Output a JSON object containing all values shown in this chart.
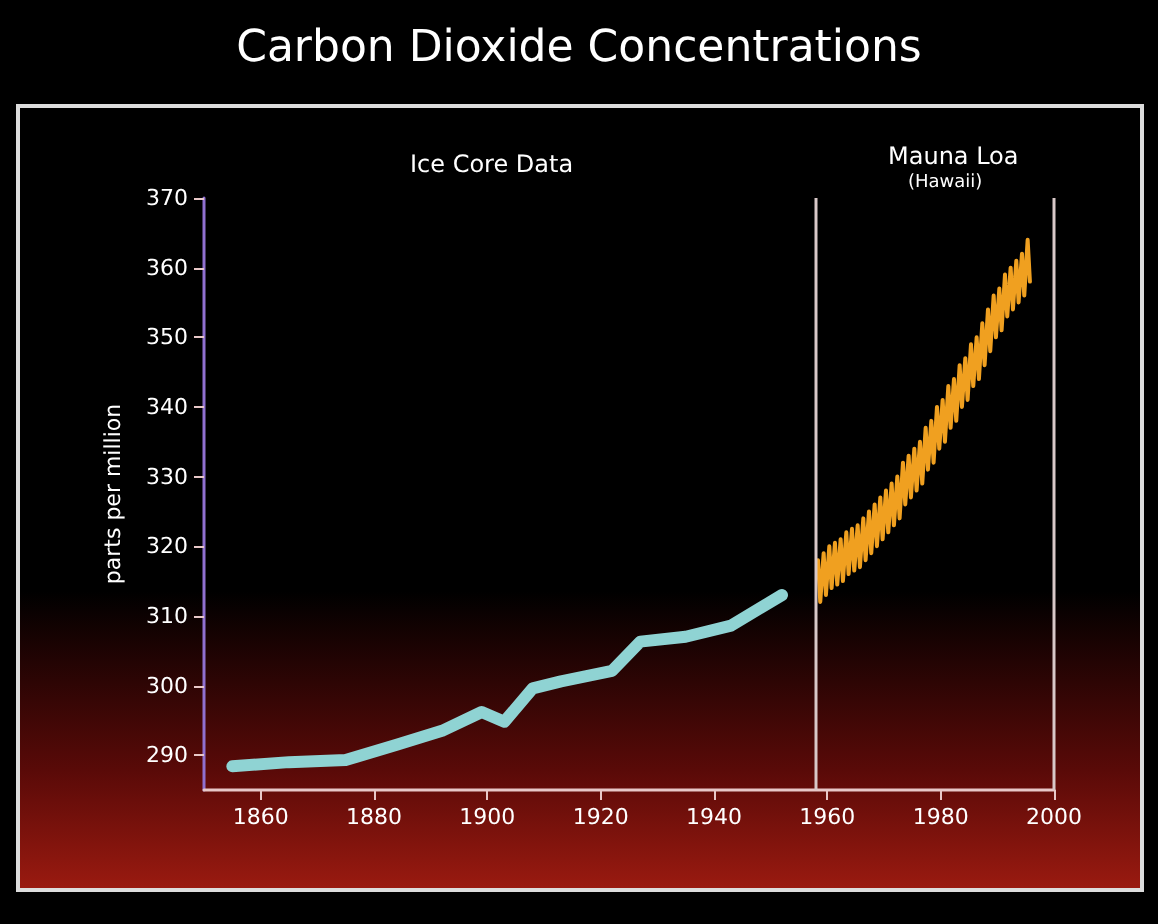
{
  "chart_data": {
    "type": "line",
    "title": "Carbon Dioxide Concentrations",
    "ylabel": "parts per million",
    "annotations": [
      "Ice Core Data",
      "Mauna Loa",
      "(Hawaii)"
    ],
    "series": [
      {
        "color": "#8fd3d3",
        "x": [
          1855,
          1865,
          1875,
          1884,
          1892,
          1899,
          1903,
          1908,
          1913,
          1922,
          1927,
          1935,
          1943,
          1952
        ],
        "values": [
          288.4,
          289,
          289.3,
          291.5,
          293.5,
          296.2,
          294.8,
          299.6,
          300.6,
          302.1,
          306.3,
          307,
          308.6,
          313
        ]
      },
      {
        "color": "#f0a020",
        "x": [
          1958.35,
          1958.75,
          1959.35,
          1959.75,
          1960.35,
          1960.75,
          1961.35,
          1961.75,
          1962.35,
          1962.75,
          1963.35,
          1963.75,
          1964.35,
          1964.75,
          1965.35,
          1965.75,
          1966.35,
          1966.75,
          1967.35,
          1967.75,
          1968.35,
          1968.75,
          1969.35,
          1969.75,
          1970.35,
          1970.75,
          1971.35,
          1971.75,
          1972.35,
          1972.75,
          1973.35,
          1973.75,
          1974.35,
          1974.75,
          1975.35,
          1975.75,
          1976.35,
          1976.75,
          1977.35,
          1977.75,
          1978.35,
          1978.75,
          1979.35,
          1979.75,
          1980.35,
          1980.75,
          1981.35,
          1981.75,
          1982.35,
          1982.75,
          1983.35,
          1983.75,
          1984.35,
          1984.75,
          1985.35,
          1985.75,
          1986.35,
          1986.75,
          1987.35,
          1987.75,
          1988.35,
          1988.75,
          1989.35,
          1989.75,
          1990.35,
          1990.75,
          1991.35,
          1991.75,
          1992.35,
          1992.75,
          1993.35,
          1993.75,
          1994.35,
          1994.75,
          1995.35,
          1995.75
        ],
        "values": [
          318,
          312,
          319,
          313,
          320,
          314,
          320.5,
          314.5,
          321,
          315,
          322,
          316,
          322.5,
          316.5,
          323,
          317,
          324,
          318,
          325,
          319,
          326,
          320,
          327,
          321,
          328,
          322,
          329,
          323,
          330,
          324,
          332,
          326,
          333,
          327,
          334,
          328,
          335,
          329,
          337,
          331,
          338,
          332,
          340,
          334,
          341,
          335,
          343,
          337,
          344,
          338,
          346,
          340,
          347,
          341,
          349,
          343,
          350,
          344,
          352,
          346,
          354,
          348,
          356,
          350,
          357,
          351,
          359,
          353,
          360,
          354,
          361,
          355,
          362,
          356,
          364,
          358
        ]
      }
    ],
    "xlim": [
      1850,
      2000
    ],
    "xticks": [
      1860,
      1880,
      1900,
      1920,
      1940,
      1960,
      1980,
      2000
    ],
    "ylim": [
      285,
      370
    ],
    "yticks": [
      290,
      300,
      310,
      320,
      330,
      340,
      350,
      360,
      370
    ],
    "ref_lines": [
      {
        "axis": "x",
        "value": 1958,
        "color": "#d8c8c8"
      },
      {
        "axis": "x",
        "value": 2000,
        "color": "#d8c8c8"
      }
    ],
    "grid": false,
    "marker": "none"
  }
}
